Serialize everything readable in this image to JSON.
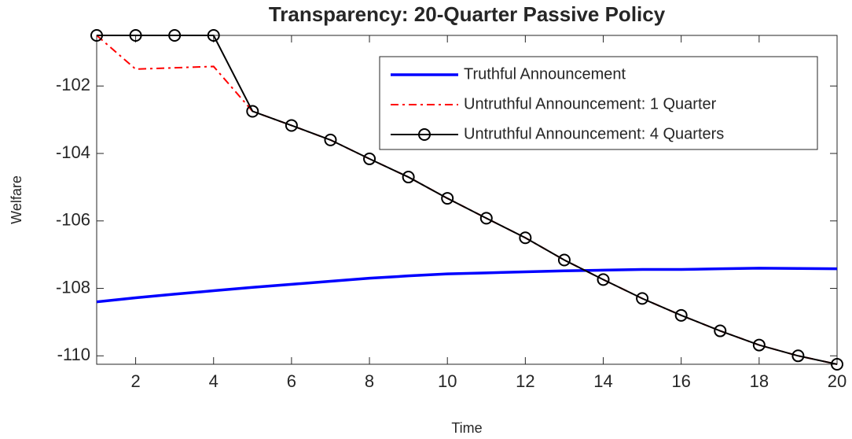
{
  "chart_data": {
    "type": "line",
    "title": "Transparency: 20-Quarter Passive Policy",
    "x_label": "Time",
    "y_label": "Welfare",
    "x": [
      1,
      2,
      3,
      4,
      5,
      6,
      7,
      8,
      9,
      10,
      11,
      12,
      13,
      14,
      15,
      16,
      17,
      18,
      19,
      20
    ],
    "series": [
      {
        "name": "Truthful Announcement",
        "color": "#0000ff",
        "style": "solid",
        "marker": null,
        "values": [
          -108.4,
          -108.28,
          -108.17,
          -108.07,
          -107.97,
          -107.88,
          -107.79,
          -107.7,
          -107.63,
          -107.57,
          -107.54,
          -107.51,
          -107.48,
          -107.46,
          -107.44,
          -107.44,
          -107.42,
          -107.4,
          -107.41,
          -107.42
        ]
      },
      {
        "name": "Untruthful Announcement: 1 Quarter",
        "color": "#ff0000",
        "style": "dashdot",
        "marker": null,
        "values": [
          -100.5,
          -101.5,
          -101.46,
          -101.42,
          -102.75,
          -103.17,
          -103.6,
          -104.16,
          -104.7,
          -105.33,
          -105.92,
          -106.5,
          -107.16,
          -107.74,
          -108.3,
          -108.8,
          -109.26,
          -109.68,
          -110.0,
          -110.25
        ]
      },
      {
        "name": "Untruthful Announcement: 4 Quarters",
        "color": "#000000",
        "style": "solid",
        "marker": "circle",
        "values": [
          -100.5,
          -100.5,
          -100.5,
          -100.5,
          -102.75,
          -103.17,
          -103.6,
          -104.16,
          -104.7,
          -105.33,
          -105.92,
          -106.5,
          -107.16,
          -107.74,
          -108.3,
          -108.8,
          -109.26,
          -109.68,
          -110.0,
          -110.25
        ]
      }
    ],
    "xlim": [
      1,
      20
    ],
    "ylim": [
      -110.25,
      -100.5
    ],
    "xticks": [
      2,
      4,
      6,
      8,
      10,
      12,
      14,
      16,
      18,
      20
    ],
    "yticks": [
      -110,
      -108,
      -106,
      -104,
      -102
    ],
    "grid": false,
    "legend_position": "upper right"
  }
}
